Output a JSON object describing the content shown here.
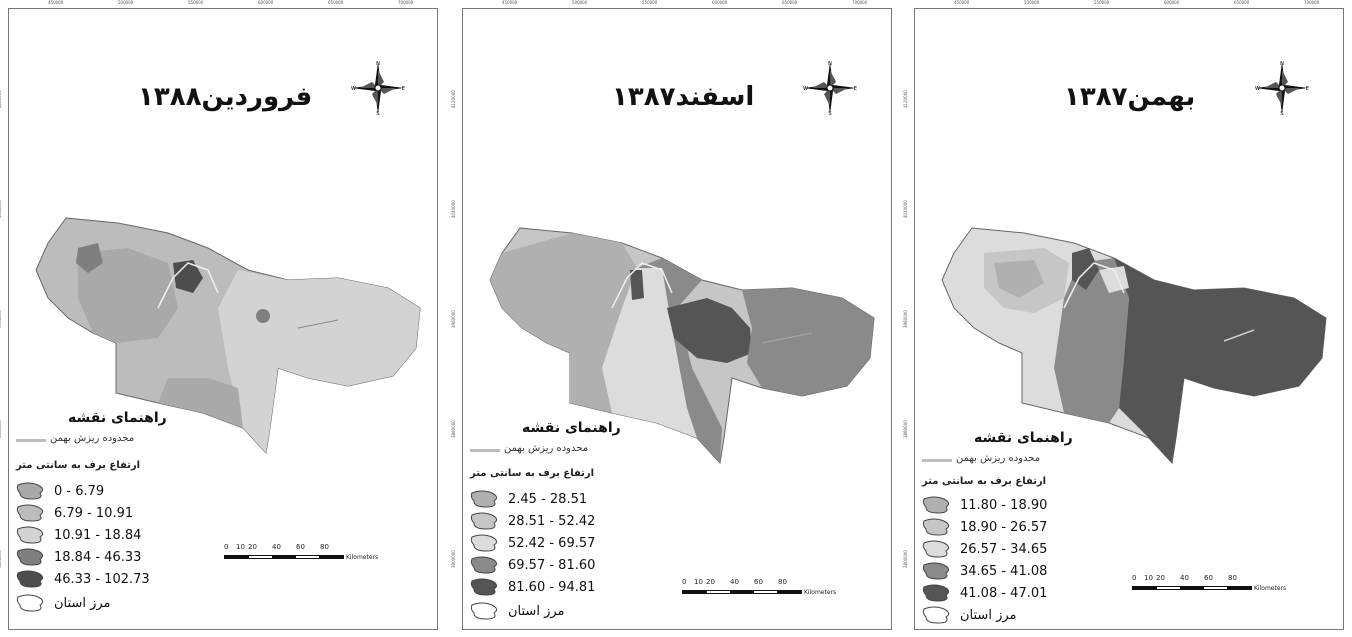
{
  "panels": [
    {
      "title": "فروردین۱۳۸۸",
      "legend_title": "راهنمای نقشه",
      "avalanche_label": "محدوده ریزش بهمن",
      "snow_label": "ارتفاع برف به سانتی متر",
      "border_label": "مرز استان",
      "classes": [
        {
          "range": "0 - 6.79",
          "color": "#a9a9a9"
        },
        {
          "range": "6.79 - 10.91",
          "color": "#bcbcbc"
        },
        {
          "range": "10.91 - 18.84",
          "color": "#d3d3d3"
        },
        {
          "range": "18.84 - 46.33",
          "color": "#7f7f7f"
        },
        {
          "range": "46.33 - 102.73",
          "color": "#4d4d4d"
        }
      ]
    },
    {
      "title": "اسفند۱۳۸۷",
      "legend_title": "راهنمای نقشه",
      "avalanche_label": "محدوده ریزش بهمن",
      "snow_label": "ارتفاع برف به سانتی متر",
      "border_label": "مرز استان",
      "classes": [
        {
          "range": "2.45 - 28.51",
          "color": "#b0b0b0"
        },
        {
          "range": "28.51 - 52.42",
          "color": "#c6c6c6"
        },
        {
          "range": "52.42 - 69.57",
          "color": "#dcdcdc"
        },
        {
          "range": "69.57 - 81.60",
          "color": "#8a8a8a"
        },
        {
          "range": "81.60 - 94.81",
          "color": "#555555"
        }
      ]
    },
    {
      "title": "بهمن۱۳۸۷",
      "legend_title": "راهنمای نقشه",
      "avalanche_label": "محدوده ریزش بهمن",
      "snow_label": "ارتفاع برف به سانتی متر",
      "border_label": "مرز استان",
      "classes": [
        {
          "range": "11.80 - 18.90",
          "color": "#b0b0b0"
        },
        {
          "range": "18.90 - 26.57",
          "color": "#c6c6c6"
        },
        {
          "range": "26.57 - 34.65",
          "color": "#dcdcdc"
        },
        {
          "range": "34.65 - 41.08",
          "color": "#8a8a8a"
        },
        {
          "range": "41.08 - 47.01",
          "color": "#555555"
        }
      ]
    }
  ],
  "scale": {
    "ticks": [
      "0",
      "10",
      "20",
      "40",
      "60",
      "80"
    ],
    "unit": "Kilometers"
  },
  "coords_top": [
    "450000",
    "500000",
    "550000",
    "600000",
    "650000",
    "700000"
  ],
  "coords_side": [
    "4120000",
    "4040000",
    "3960000",
    "3880000",
    "3800000"
  ],
  "compass": {
    "n": "N",
    "s": "S",
    "e": "E",
    "w": "W"
  }
}
